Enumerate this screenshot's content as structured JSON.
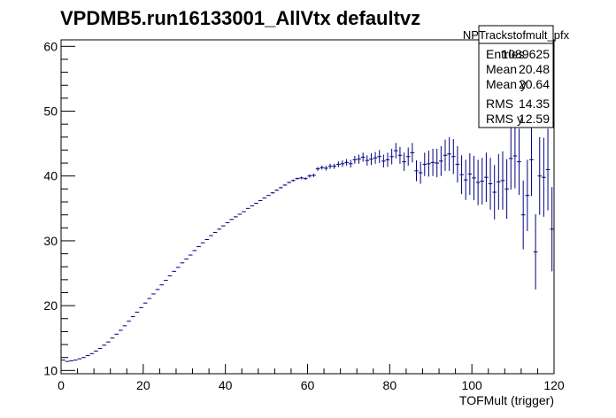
{
  "chart_data": {
    "type": "scatter",
    "title": "VPDMB5.run16133001_AllVtx defaultvz",
    "xlabel": "TOFMult (trigger)",
    "ylabel": "",
    "xlim": [
      0,
      120
    ],
    "ylim": [
      9.5,
      61
    ],
    "xticks": [
      0,
      20,
      40,
      60,
      80,
      100,
      120
    ],
    "yticks": [
      10,
      20,
      30,
      40,
      50,
      60
    ],
    "grid": false,
    "series": [
      {
        "x": [
          0.5,
          1.5,
          2.5,
          3.5,
          4.5,
          5.5,
          6.5,
          7.5,
          8.5,
          9.5,
          10.5,
          11.5,
          12.5,
          13.5,
          14.5,
          15.5,
          16.5,
          17.5,
          18.5,
          19.5,
          20.5,
          21.5,
          22.5,
          23.5,
          24.5,
          25.5,
          26.5,
          27.5,
          28.5,
          29.5,
          30.5,
          31.5,
          32.5,
          33.5,
          34.5,
          35.5,
          36.5,
          37.5,
          38.5,
          39.5,
          40.5,
          41.5,
          42.5,
          43.5,
          44.5,
          45.5,
          46.5,
          47.5,
          48.5,
          49.5,
          50.5,
          51.5,
          52.5,
          53.5,
          54.5,
          55.5,
          56.5,
          57.5,
          58.5,
          59.5,
          60.5,
          61.5,
          62.5,
          63.5,
          64.5,
          65.5,
          66.5,
          67.5,
          68.5,
          69.5,
          70.5,
          71.5,
          72.5,
          73.5,
          74.5,
          75.5,
          76.5,
          77.5,
          78.5,
          79.5,
          80.5,
          81.5,
          82.5,
          83.5,
          84.5,
          85.5,
          86.5,
          87.5,
          88.5,
          89.5,
          90.5,
          91.5,
          92.5,
          93.5,
          94.5,
          95.5,
          96.5,
          97.5,
          98.5,
          99.5,
          100.5,
          101.5,
          102.5,
          103.5,
          104.5,
          105.5,
          106.5,
          107.5,
          108.5,
          109.5,
          110.5,
          111.5,
          112.5,
          113.5,
          114.5,
          115.5,
          116.5,
          117.5,
          118.5,
          119.5
        ],
        "y": [
          11.6,
          11.4,
          11.5,
          11.6,
          11.8,
          12.0,
          12.3,
          12.6,
          13.0,
          13.4,
          13.9,
          14.4,
          15.0,
          15.6,
          16.2,
          16.9,
          17.6,
          18.3,
          19.0,
          19.7,
          20.4,
          21.1,
          21.8,
          22.5,
          23.2,
          23.9,
          24.6,
          25.3,
          25.9,
          26.6,
          27.2,
          27.8,
          28.5,
          29.1,
          29.7,
          30.2,
          30.8,
          31.3,
          31.8,
          32.3,
          32.8,
          33.3,
          33.7,
          34.1,
          34.5,
          35.0,
          35.4,
          35.8,
          36.2,
          36.6,
          37.0,
          37.4,
          37.8,
          38.2,
          38.6,
          39.0,
          39.3,
          39.6,
          39.7,
          39.6,
          40.0,
          40.1,
          41.1,
          41.3,
          41.2,
          41.5,
          41.5,
          41.8,
          41.9,
          42.1,
          41.9,
          42.5,
          42.6,
          42.9,
          42.4,
          42.6,
          42.8,
          43.0,
          42.3,
          42.5,
          43.0,
          43.9,
          43.2,
          42.2,
          43.0,
          43.6,
          40.8,
          40.5,
          41.8,
          41.9,
          42.1,
          42.0,
          42.3,
          43.2,
          43.4,
          43.0,
          41.8,
          40.2,
          39.4,
          40.3,
          39.7,
          39.0,
          39.2,
          39.8,
          38.8,
          37.5,
          39.1,
          39.3,
          38.0,
          42.7,
          43.1,
          42.2,
          34.0,
          37.0,
          42.5,
          28.3,
          40.0,
          39.8,
          41.0,
          31.8
        ],
        "error": [
          0.05,
          0.05,
          0.05,
          0.05,
          0.05,
          0.05,
          0.05,
          0.05,
          0.05,
          0.05,
          0.05,
          0.05,
          0.05,
          0.05,
          0.05,
          0.05,
          0.05,
          0.05,
          0.05,
          0.05,
          0.05,
          0.05,
          0.05,
          0.05,
          0.05,
          0.05,
          0.05,
          0.05,
          0.05,
          0.05,
          0.05,
          0.05,
          0.05,
          0.05,
          0.05,
          0.05,
          0.05,
          0.05,
          0.05,
          0.05,
          0.05,
          0.05,
          0.05,
          0.05,
          0.05,
          0.05,
          0.05,
          0.05,
          0.05,
          0.05,
          0.05,
          0.1,
          0.1,
          0.1,
          0.1,
          0.1,
          0.15,
          0.15,
          0.2,
          0.2,
          0.25,
          0.25,
          0.3,
          0.3,
          0.35,
          0.4,
          0.4,
          0.45,
          0.5,
          0.5,
          0.6,
          0.6,
          0.7,
          0.7,
          0.8,
          0.9,
          0.9,
          1.0,
          1.0,
          1.1,
          1.2,
          1.2,
          1.3,
          1.4,
          1.4,
          1.5,
          1.6,
          1.7,
          1.8,
          2.0,
          2.1,
          2.2,
          2.3,
          2.4,
          2.6,
          2.7,
          2.8,
          3.0,
          3.1,
          3.2,
          3.4,
          3.5,
          3.6,
          3.8,
          4.0,
          4.2,
          4.3,
          4.5,
          4.6,
          4.8,
          5.0,
          5.1,
          5.3,
          5.5,
          5.6,
          5.8,
          6.0,
          6.1,
          6.3,
          6.5
        ]
      }
    ],
    "stats_box": {
      "name": "NPTrackstofmult_pfx",
      "rows": [
        {
          "label": "Entries",
          "value": "1089625"
        },
        {
          "label": "Mean",
          "value": "20.48"
        },
        {
          "label": "Mean y",
          "value": "20.64"
        },
        {
          "label": "RMS",
          "value": "14.35"
        },
        {
          "label": "RMS y",
          "value": "12.59"
        }
      ]
    },
    "colors": {
      "marker": "#000080",
      "axis": "#000000",
      "background": "#ffffff"
    }
  }
}
